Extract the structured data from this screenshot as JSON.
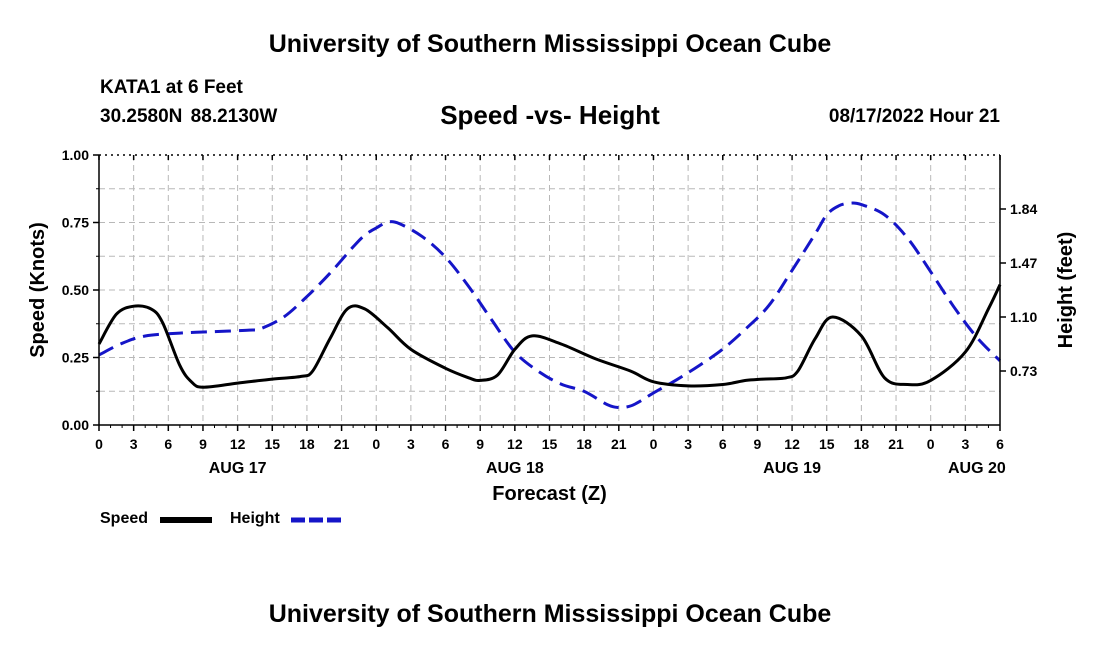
{
  "header": {
    "title": "University of Southern Mississippi Ocean Cube",
    "station": "KATA1 at 6 Feet",
    "coords": "30.2580N  88.2130W",
    "subtitle": "Speed -vs- Height",
    "datetime": "08/17/2022 Hour 21"
  },
  "footer": {
    "title": "University of Southern Mississippi Ocean Cube"
  },
  "chart_data": {
    "type": "line",
    "x_unit": "forecast hours from 00Z Aug 17",
    "xlim": [
      0,
      78
    ],
    "x_tick_labels": [
      "0",
      "3",
      "6",
      "9",
      "12",
      "15",
      "18",
      "21",
      "0",
      "3",
      "6",
      "9",
      "12",
      "15",
      "18",
      "21",
      "0",
      "3",
      "6",
      "9",
      "12",
      "15",
      "18",
      "21",
      "0",
      "3",
      "6"
    ],
    "date_labels": [
      {
        "x": 12,
        "label": "AUG 17"
      },
      {
        "x": 36,
        "label": "AUG 18"
      },
      {
        "x": 60,
        "label": "AUG 19"
      },
      {
        "x": 76,
        "label": "AUG 20"
      }
    ],
    "xlabel": "Forecast (Z)",
    "ylabel": "Speed (Knots)",
    "ylim": [
      0,
      1.0
    ],
    "y_ticks": [
      "0.00",
      "0.25",
      "0.50",
      "0.75",
      "1.00"
    ],
    "y2label": "Height (feet)",
    "y2lim": [
      0.36,
      2.21
    ],
    "y2_ticks": [
      "0.73",
      "1.10",
      "1.47",
      "1.84"
    ],
    "grid": true,
    "series": [
      {
        "name": "Speed",
        "axis": "left",
        "color": "#000000",
        "style": "solid",
        "x": [
          0,
          1.5,
          3,
          4.5,
          5.5,
          7,
          8,
          9,
          12,
          15,
          17.5,
          18.5,
          20,
          21.5,
          23,
          25,
          27,
          30,
          32,
          33,
          34.5,
          36,
          37.5,
          40,
          43,
          46,
          48,
          51,
          54,
          56,
          57.5,
          59.5,
          60.5,
          62,
          63.5,
          66,
          68,
          70,
          72,
          75,
          77,
          78
        ],
        "values": [
          0.3,
          0.41,
          0.44,
          0.43,
          0.38,
          0.22,
          0.16,
          0.14,
          0.155,
          0.17,
          0.18,
          0.2,
          0.32,
          0.43,
          0.43,
          0.36,
          0.28,
          0.21,
          0.175,
          0.165,
          0.185,
          0.28,
          0.33,
          0.3,
          0.245,
          0.2,
          0.16,
          0.145,
          0.15,
          0.165,
          0.17,
          0.175,
          0.2,
          0.32,
          0.4,
          0.33,
          0.175,
          0.15,
          0.165,
          0.27,
          0.43,
          0.52
        ]
      },
      {
        "name": "Height",
        "axis": "right",
        "color": "#1515c8",
        "style": "dashed",
        "x": [
          0,
          2,
          4,
          7,
          10,
          13,
          14,
          16,
          18,
          20,
          22,
          23,
          24,
          25,
          26,
          28,
          30,
          32,
          34,
          36,
          38,
          40,
          42,
          44,
          45,
          46,
          47,
          48,
          50,
          52,
          54,
          56,
          58,
          60,
          62,
          63,
          64,
          65,
          66,
          68,
          70,
          72,
          74,
          76,
          78
        ],
        "values": [
          0.84,
          0.92,
          0.97,
          0.99,
          1.0,
          1.01,
          1.02,
          1.1,
          1.24,
          1.4,
          1.58,
          1.66,
          1.71,
          1.75,
          1.74,
          1.65,
          1.51,
          1.31,
          1.08,
          0.86,
          0.73,
          0.64,
          0.59,
          0.5,
          0.48,
          0.49,
          0.53,
          0.58,
          0.67,
          0.77,
          0.88,
          1.02,
          1.18,
          1.42,
          1.67,
          1.8,
          1.86,
          1.88,
          1.87,
          1.8,
          1.64,
          1.41,
          1.17,
          0.96,
          0.8
        ]
      }
    ],
    "legend": [
      {
        "label": "Speed",
        "color": "#000000",
        "style": "solid"
      },
      {
        "label": "Height",
        "color": "#1515c8",
        "style": "dashed"
      }
    ]
  }
}
